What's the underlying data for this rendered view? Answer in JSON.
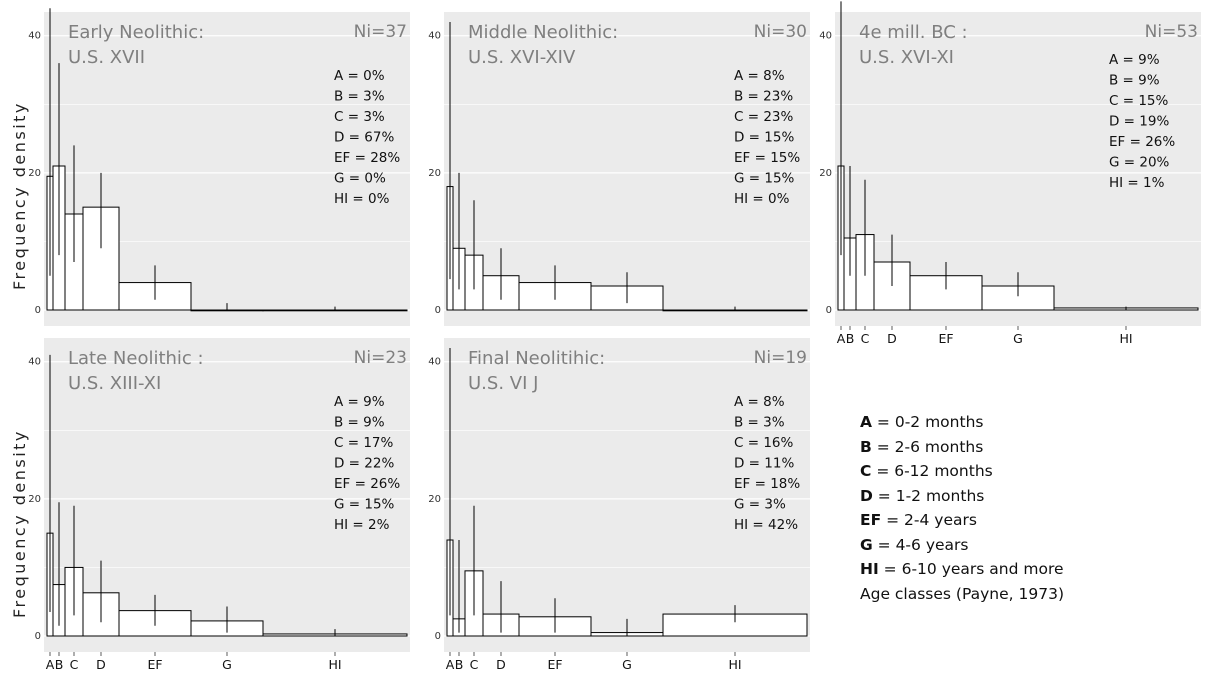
{
  "y_axis_label": "Frequency density",
  "legend": {
    "entries": [
      {
        "key": "A",
        "text": " = 0-2 months"
      },
      {
        "key": "B",
        "text": " = 2-6 months"
      },
      {
        "key": "C",
        "text": " = 6-12 months"
      },
      {
        "key": "D",
        "text": " = 1-2 months"
      },
      {
        "key": "EF",
        "text": " = 2-4 years"
      },
      {
        "key": "G",
        "text": " = 4-6 years"
      },
      {
        "key": "HI",
        "text": " = 6-10 years and more"
      }
    ],
    "footer": "Age classes (Payne, 1973)"
  },
  "colors": {
    "panel_bg": "#ebebeb",
    "grid": "#ffffff",
    "bar_fill": "#ffffff",
    "bar_stroke": "#000000",
    "title": "#7f7f7f"
  },
  "chart_data": [
    {
      "type": "bar",
      "title": "Early Neolithic:",
      "subtitle": "U.S. XVII",
      "ni_label": "Ni=37",
      "percent_labels": [
        "A = 0%",
        "B = 3%",
        "C = 3%",
        "D = 67%",
        "EF = 28%",
        "G = 0%",
        "HI = 0%"
      ],
      "categories": [
        "A",
        "B",
        "C",
        "D",
        "EF",
        "G",
        "HI"
      ],
      "bins": [
        [
          0,
          2
        ],
        [
          2,
          6
        ],
        [
          6,
          12
        ],
        [
          12,
          24
        ],
        [
          24,
          48
        ],
        [
          48,
          72
        ],
        [
          72,
          120
        ]
      ],
      "values": [
        19.5,
        21,
        14,
        15,
        4,
        0,
        0
      ],
      "error_low": [
        5,
        8,
        7,
        9,
        1.5,
        0,
        0
      ],
      "error_high": [
        44,
        36,
        24,
        20,
        6.5,
        1,
        0.5
      ],
      "xticks_shown": false,
      "ylim": [
        0,
        42
      ],
      "yticks": [
        0,
        20,
        40
      ],
      "ylabel_shown": true
    },
    {
      "type": "bar",
      "title": "Middle Neolithic:",
      "subtitle": "U.S. XVI-XIV",
      "ni_label": "Ni=30",
      "percent_labels": [
        "A = 8%",
        "B = 23%",
        "C = 23%",
        "D = 15%",
        "EF = 15%",
        "G = 15%",
        "HI = 0%"
      ],
      "categories": [
        "A",
        "B",
        "C",
        "D",
        "EF",
        "G",
        "HI"
      ],
      "bins": [
        [
          0,
          2
        ],
        [
          2,
          6
        ],
        [
          6,
          12
        ],
        [
          12,
          24
        ],
        [
          24,
          48
        ],
        [
          48,
          72
        ],
        [
          72,
          120
        ]
      ],
      "values": [
        18,
        9,
        8,
        5,
        4,
        3.5,
        0
      ],
      "error_low": [
        4.5,
        3,
        3,
        1.5,
        1.5,
        1,
        0
      ],
      "error_high": [
        42,
        20,
        16,
        9,
        6.5,
        5.5,
        0.5
      ],
      "xticks_shown": false,
      "ylim": [
        0,
        42
      ],
      "yticks": [
        0,
        20,
        40
      ],
      "ylabel_shown": false
    },
    {
      "type": "bar",
      "title": "4e mill. BC :",
      "subtitle": "U.S.  XVI-XI",
      "ni_label": "Ni=53",
      "percent_labels": [
        "A = 9%",
        "B = 9%",
        "C = 15%",
        "D = 19%",
        "EF = 26%",
        "G = 20%",
        "HI = 1%"
      ],
      "categories": [
        "A",
        "B",
        "C",
        "D",
        "EF",
        "G",
        "HI"
      ],
      "bins": [
        [
          0,
          2
        ],
        [
          2,
          6
        ],
        [
          6,
          12
        ],
        [
          12,
          24
        ],
        [
          24,
          48
        ],
        [
          48,
          72
        ],
        [
          72,
          120
        ]
      ],
      "values": [
        21,
        10.5,
        11,
        7,
        5,
        3.5,
        0.3
      ],
      "error_low": [
        8,
        5,
        5,
        3.5,
        3,
        2,
        0
      ],
      "error_high": [
        45,
        21,
        19,
        11,
        7,
        5.5,
        0.5
      ],
      "xticks_shown": true,
      "ylim": [
        0,
        42
      ],
      "yticks": [
        0,
        20,
        40
      ],
      "ylabel_shown": false
    },
    {
      "type": "bar",
      "title": "Late Neolithic :",
      "subtitle": "U.S. XIII-XI",
      "ni_label": "Ni=23",
      "percent_labels": [
        "A = 9%",
        "B = 9%",
        "C = 17%",
        "D = 22%",
        "EF = 26%",
        "G = 15%",
        "HI = 2%"
      ],
      "categories": [
        "A",
        "B",
        "C",
        "D",
        "EF",
        "G",
        "HI"
      ],
      "bins": [
        [
          0,
          2
        ],
        [
          2,
          6
        ],
        [
          6,
          12
        ],
        [
          12,
          24
        ],
        [
          24,
          48
        ],
        [
          48,
          72
        ],
        [
          72,
          120
        ]
      ],
      "values": [
        15,
        7.5,
        10,
        6.3,
        3.7,
        2.2,
        0.3
      ],
      "error_low": [
        3.5,
        1.5,
        3,
        2,
        1.5,
        0.5,
        0
      ],
      "error_high": [
        41,
        19.5,
        19,
        11,
        6,
        4.3,
        1
      ],
      "xticks_shown": true,
      "ylim": [
        0,
        42
      ],
      "yticks": [
        0,
        20,
        40
      ],
      "ylabel_shown": true
    },
    {
      "type": "bar",
      "title": "Final Neolitihic:",
      "subtitle": "U.S. VI J",
      "ni_label": "Ni=19",
      "percent_labels": [
        "A = 8%",
        "B = 3%",
        "C = 16%",
        "D = 11%",
        "EF = 18%",
        "G = 3%",
        "HI = 42%"
      ],
      "categories": [
        "A",
        "B",
        "C",
        "D",
        "EF",
        "G",
        "HI"
      ],
      "bins": [
        [
          0,
          2
        ],
        [
          2,
          6
        ],
        [
          6,
          12
        ],
        [
          12,
          24
        ],
        [
          24,
          48
        ],
        [
          48,
          72
        ],
        [
          72,
          120
        ]
      ],
      "values": [
        14,
        2.5,
        9.5,
        3.2,
        2.8,
        0.5,
        3.2
      ],
      "error_low": [
        3,
        0.5,
        3,
        0.5,
        0.5,
        0,
        2
      ],
      "error_high": [
        42,
        14,
        19,
        8,
        5.5,
        2.5,
        4.5
      ],
      "xticks_shown": true,
      "ylim": [
        0,
        42
      ],
      "yticks": [
        0,
        20,
        40
      ],
      "ylabel_shown": false
    }
  ]
}
